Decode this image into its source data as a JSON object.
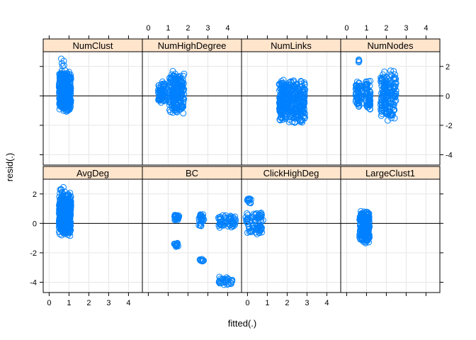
{
  "chart_data": {
    "type": "scatter",
    "xlabel": "fitted(.)",
    "ylabel": "resid(.)",
    "xlim": [
      -0.3,
      4.7
    ],
    "ylim": [
      -4.7,
      3.0
    ],
    "x_ticks": [
      0,
      1,
      2,
      3,
      4
    ],
    "y_ticks": [
      -4,
      -2,
      0,
      2
    ],
    "reference_line_y": 0,
    "grid": true,
    "point_color": "#0080ff",
    "strip_color": "#ffe5cc",
    "panels": [
      {
        "name": "AvgDeg",
        "row": 0,
        "col": 0,
        "clusters": [
          {
            "x": [
              0.5,
              1.1
            ],
            "y": [
              -0.9,
              2.2
            ],
            "n": 420
          },
          {
            "x": [
              0.5,
              0.75
            ],
            "y": [
              2.0,
              2.7
            ],
            "n": 6
          }
        ]
      },
      {
        "name": "BC",
        "row": 0,
        "col": 1,
        "clusters": [
          {
            "x": [
              1.3,
              1.55
            ],
            "y": [
              0.2,
              0.6
            ],
            "n": 25
          },
          {
            "x": [
              1.3,
              1.5
            ],
            "y": [
              -1.6,
              -1.3
            ],
            "n": 15
          },
          {
            "x": [
              2.55,
              2.8
            ],
            "y": [
              -0.3,
              0.7
            ],
            "n": 30
          },
          {
            "x": [
              2.6,
              2.8
            ],
            "y": [
              -2.6,
              -2.4
            ],
            "n": 10
          },
          {
            "x": [
              3.5,
              4.4
            ],
            "y": [
              -0.3,
              0.6
            ],
            "n": 60
          },
          {
            "x": [
              3.55,
              4.25
            ],
            "y": [
              -4.2,
              -3.6
            ],
            "n": 30
          }
        ]
      },
      {
        "name": "ClickHighDeg",
        "row": 0,
        "col": 2,
        "clusters": [
          {
            "x": [
              -0.1,
              0.2
            ],
            "y": [
              1.3,
              1.7
            ],
            "n": 12
          },
          {
            "x": [
              -0.1,
              0.8
            ],
            "y": [
              0.0,
              0.8
            ],
            "n": 40
          },
          {
            "x": [
              0.0,
              0.8
            ],
            "y": [
              -0.8,
              0.0
            ],
            "n": 40
          }
        ]
      },
      {
        "name": "LargeClust1",
        "row": 0,
        "col": 3,
        "clusters": [
          {
            "x": [
              0.65,
              1.15
            ],
            "y": [
              -1.4,
              0.9
            ],
            "n": 220
          }
        ]
      },
      {
        "name": "NumClust",
        "row": 1,
        "col": 0,
        "clusters": [
          {
            "x": [
              0.5,
              1.1
            ],
            "y": [
              -1.2,
              1.8
            ],
            "n": 360
          },
          {
            "x": [
              0.6,
              0.8
            ],
            "y": [
              1.8,
              2.7
            ],
            "n": 5
          }
        ]
      },
      {
        "name": "NumHighDegree",
        "row": 1,
        "col": 1,
        "clusters": [
          {
            "x": [
              0.5,
              0.85
            ],
            "y": [
              -0.5,
              1.0
            ],
            "n": 70
          },
          {
            "x": [
              1.05,
              1.8
            ],
            "y": [
              -1.3,
              1.8
            ],
            "n": 200
          }
        ]
      },
      {
        "name": "NumLinks",
        "row": 1,
        "col": 2,
        "clusters": [
          {
            "x": [
              1.6,
              2.9
            ],
            "y": [
              -1.9,
              1.2
            ],
            "n": 380
          }
        ]
      },
      {
        "name": "NumNodes",
        "row": 1,
        "col": 3,
        "clusters": [
          {
            "x": [
              0.45,
              0.75
            ],
            "y": [
              -0.8,
              1.0
            ],
            "n": 60
          },
          {
            "x": [
              0.95,
              1.2
            ],
            "y": [
              -1.0,
              1.2
            ],
            "n": 60
          },
          {
            "x": [
              1.7,
              2.5
            ],
            "y": [
              -1.8,
              1.9
            ],
            "n": 180
          },
          {
            "x": [
              0.55,
              0.7
            ],
            "y": [
              2.2,
              2.5
            ],
            "n": 4
          }
        ]
      }
    ]
  }
}
